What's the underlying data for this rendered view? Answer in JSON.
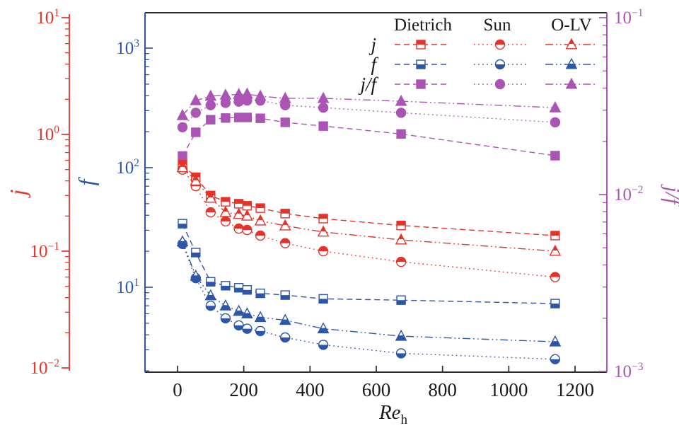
{
  "colors": {
    "j": "#e63228",
    "f": "#2d56a8",
    "jf": "#aa55b4",
    "frame": "#2b2b2b",
    "background": "#ffffff"
  },
  "chart_data": {
    "type": "line",
    "title": "",
    "xlabel": {
      "text": "Re",
      "subscript": "h"
    },
    "x_axis": {
      "range": [
        -100,
        1300
      ],
      "ticks": [
        0,
        200,
        400,
        600,
        800,
        1000,
        1200
      ]
    },
    "y_axes": [
      {
        "id": "j",
        "label": "j",
        "side": "outer-left",
        "scale": "log",
        "range": [
          0.01,
          10
        ],
        "tick_exponents": [
          1,
          0,
          -1,
          -2
        ],
        "color": "#e63228"
      },
      {
        "id": "f",
        "label": "f",
        "side": "left",
        "scale": "log",
        "range": [
          1.9,
          2000
        ],
        "tick_exponents": [
          3,
          2,
          1
        ],
        "color": "#2d56a8"
      },
      {
        "id": "jf",
        "label": "j/f",
        "side": "right",
        "scale": "log",
        "range": [
          0.001,
          0.107
        ],
        "tick_exponents": [
          -1,
          -2,
          -3
        ],
        "color": "#aa55b4"
      }
    ],
    "legend": {
      "columns": [
        "Dietrich",
        "Sun",
        "O-LV"
      ],
      "rows": [
        "j",
        "f",
        "j/f"
      ],
      "column_line_styles": [
        "dashed",
        "dotted",
        "dashdotdot"
      ],
      "column_markers": [
        "square",
        "circle",
        "triangle"
      ]
    },
    "Re_h": [
      15,
      55,
      100,
      145,
      185,
      210,
      250,
      325,
      440,
      675,
      1140
    ],
    "series": [
      {
        "name": "j Dietrich",
        "quantity": "j",
        "correlation": "Dietrich",
        "axis": "j",
        "marker": "square",
        "marker_fill": "top",
        "line_style": "dashed",
        "color": "#e63228",
        "values": [
          0.55,
          0.43,
          0.3,
          0.265,
          0.255,
          0.245,
          0.234,
          0.21,
          0.19,
          0.166,
          0.136
        ]
      },
      {
        "name": "j Sun",
        "quantity": "j",
        "correlation": "Sun",
        "axis": "j",
        "marker": "circle",
        "marker_fill": "top",
        "line_style": "dotted",
        "color": "#e63228",
        "values": [
          0.5,
          0.36,
          0.215,
          0.18,
          0.156,
          0.152,
          0.136,
          0.117,
          0.1,
          0.081,
          0.06
        ]
      },
      {
        "name": "j O-LV",
        "quantity": "j",
        "correlation": "O-LV",
        "axis": "j",
        "marker": "triangle",
        "marker_fill": "top",
        "line_style": "dashdotdot",
        "color": "#e63228",
        "values": [
          0.52,
          0.4,
          0.285,
          0.215,
          0.207,
          0.2,
          0.182,
          0.165,
          0.146,
          0.125,
          0.1
        ]
      },
      {
        "name": "f Dietrich",
        "quantity": "f",
        "correlation": "Dietrich",
        "axis": "f",
        "marker": "square",
        "marker_fill": "bottom",
        "line_style": "dashed",
        "color": "#2d56a8",
        "values": [
          34,
          19.5,
          11.1,
          10.3,
          9.9,
          9.5,
          8.9,
          8.6,
          8.0,
          7.8,
          7.3
        ]
      },
      {
        "name": "f Sun",
        "quantity": "f",
        "correlation": "Sun",
        "axis": "f",
        "marker": "circle",
        "marker_fill": "bottom",
        "line_style": "dotted",
        "color": "#2d56a8",
        "values": [
          23,
          11.9,
          7.0,
          5.5,
          4.8,
          4.5,
          4.3,
          3.8,
          3.3,
          2.8,
          2.5
        ]
      },
      {
        "name": "f O-LV",
        "quantity": "f",
        "correlation": "O-LV",
        "axis": "f",
        "marker": "triangle",
        "marker_fill": "bottom",
        "line_style": "dashdotdot",
        "color": "#2d56a8",
        "values": [
          24,
          12.4,
          8.5,
          7.0,
          6.3,
          6.0,
          5.6,
          5.3,
          4.5,
          3.9,
          3.5
        ]
      },
      {
        "name": "j/f Dietrich",
        "quantity": "j/f",
        "correlation": "Dietrich",
        "axis": "jf",
        "marker": "square",
        "marker_fill": "full",
        "line_style": "dashed",
        "color": "#aa55b4",
        "values": [
          0.0165,
          0.0225,
          0.0265,
          0.0271,
          0.0273,
          0.0273,
          0.027,
          0.0256,
          0.0244,
          0.022,
          0.0166
        ]
      },
      {
        "name": "j/f Sun",
        "quantity": "j/f",
        "correlation": "Sun",
        "axis": "jf",
        "marker": "circle",
        "marker_fill": "full",
        "line_style": "dotted",
        "color": "#aa55b4",
        "values": [
          0.024,
          0.029,
          0.032,
          0.033,
          0.0335,
          0.034,
          0.034,
          0.032,
          0.031,
          0.029,
          0.0256
        ]
      },
      {
        "name": "j/f O-LV",
        "quantity": "j/f",
        "correlation": "O-LV",
        "axis": "jf",
        "marker": "triangle",
        "marker_fill": "full",
        "line_style": "dashdotdot",
        "color": "#aa55b4",
        "values": [
          0.028,
          0.034,
          0.036,
          0.0365,
          0.0368,
          0.037,
          0.036,
          0.035,
          0.035,
          0.0337,
          0.031
        ]
      }
    ]
  }
}
